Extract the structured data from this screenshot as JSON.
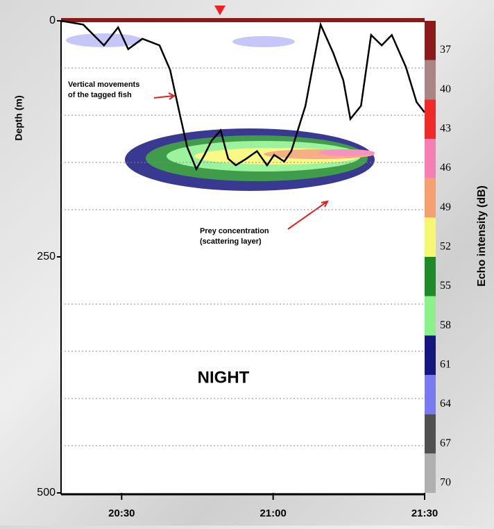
{
  "chart_data": {
    "type": "line",
    "y_label": "Depth (m)",
    "annotations": {
      "fish": [
        "Vertical movements",
        "of the tagged fish"
      ],
      "prey": [
        "Prey concentration",
        "(scattering layer)"
      ],
      "period": "NIGHT"
    },
    "x": [
      1218.0,
      1222.4,
      1226.5,
      1229.3,
      1231.3,
      1234.1,
      1237.5,
      1239.6,
      1241.6,
      1243.0,
      1244.8,
      1246.4,
      1247.8,
      1249.6,
      1251.1,
      1252.6,
      1254.7,
      1256.8,
      1258.8,
      1260.2,
      1262.2,
      1263.6,
      1266.4,
      1269.4,
      1271.9,
      1273.9,
      1275.3,
      1277.4,
      1279.4,
      1281.5,
      1283.5,
      1286.3,
      1288.4,
      1290.0
    ],
    "series": [
      {
        "color": "#000000",
        "values": [
          0,
          4,
          26,
          7,
          30,
          19,
          26,
          52,
          101,
          134,
          157,
          142,
          127,
          116,
          146,
          153,
          146,
          138,
          153,
          142,
          149,
          138,
          90,
          4,
          34,
          63,
          104,
          90,
          15,
          26,
          15,
          49,
          86,
          97
        ]
      }
    ],
    "xlim": [
      1218,
      1290
    ],
    "xticks": [
      {
        "value": 1230,
        "label": "20:30"
      },
      {
        "value": 1260,
        "label": "21:00"
      },
      {
        "value": 1290,
        "label": "21:30"
      }
    ],
    "ylim": [
      0,
      500
    ],
    "y_inverted": true,
    "yticks": [
      0,
      250,
      500
    ],
    "ygrid": [
      50,
      100,
      150,
      200,
      300,
      350,
      400,
      450
    ],
    "colorbar": {
      "label": "Echo intensity (dB)",
      "levels": [
        37,
        40,
        43,
        46,
        49,
        52,
        55,
        58,
        61,
        64,
        67,
        70
      ],
      "colors": [
        "#8b1a1a",
        "#a98585",
        "#ee2a2a",
        "#f57fb0",
        "#f5a070",
        "#f8f870",
        "#1e8a2a",
        "#8cf08c",
        "#16167f",
        "#7a7af0",
        "#505050",
        "#b0b0b0"
      ]
    }
  }
}
